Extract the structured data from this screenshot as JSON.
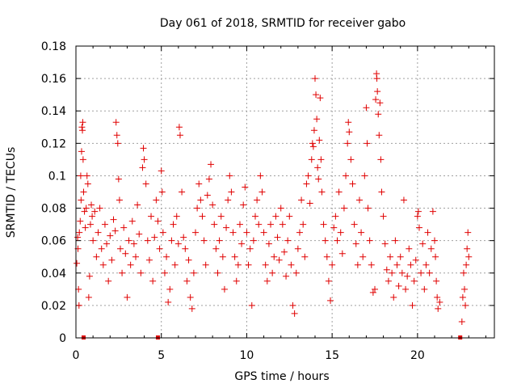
{
  "chart_data": {
    "type": "scatter",
    "title": "Day 061 of 2018, SRMTID for receiver gabo",
    "xlabel": "GPS time / hours",
    "ylabel": "SRMTID / TECUs",
    "xlim": [
      0,
      24.5
    ],
    "ylim": [
      0,
      0.18
    ],
    "xticks": [
      0,
      5,
      10,
      15,
      20
    ],
    "xtick_labels": [
      "0",
      "5",
      "10",
      "15",
      "20"
    ],
    "yticks": [
      0,
      0.02,
      0.04,
      0.06,
      0.08,
      0.1,
      0.12,
      0.14,
      0.16,
      0.18
    ],
    "ytick_labels": [
      "0",
      "0.02",
      "0.04",
      "0.06",
      "0.08",
      "0.1",
      "0.12",
      "0.14",
      "0.16",
      "0.18"
    ],
    "grid": true,
    "marker": "plus",
    "color": "#e00000",
    "series": [
      {
        "name": "SRMTID",
        "points": [
          [
            0.05,
            0.046
          ],
          [
            0.1,
            0.062
          ],
          [
            0.12,
            0.055
          ],
          [
            0.15,
            0.03
          ],
          [
            0.18,
            0.02
          ],
          [
            0.2,
            0.065
          ],
          [
            0.25,
            0.072
          ],
          [
            0.28,
            0.1
          ],
          [
            0.3,
            0.085
          ],
          [
            0.33,
            0.115
          ],
          [
            0.35,
            0.13
          ],
          [
            0.38,
            0.128
          ],
          [
            0.4,
            0.133
          ],
          [
            0.42,
            0.11
          ],
          [
            0.45,
            0.09
          ],
          [
            0.5,
            0.078
          ],
          [
            0.55,
            0.068
          ],
          [
            0.6,
            0.08
          ],
          [
            0.65,
            0.1
          ],
          [
            0.7,
            0.095
          ],
          [
            0.75,
            0.025
          ],
          [
            0.8,
            0.038
          ],
          [
            0.85,
            0.07
          ],
          [
            0.9,
            0.082
          ],
          [
            0.95,
            0.075
          ],
          [
            1.0,
            0.06
          ],
          [
            1.1,
            0.078
          ],
          [
            1.2,
            0.05
          ],
          [
            1.3,
            0.065
          ],
          [
            1.4,
            0.08
          ],
          [
            1.5,
            0.055
          ],
          [
            1.6,
            0.045
          ],
          [
            1.7,
            0.07
          ],
          [
            1.8,
            0.058
          ],
          [
            1.9,
            0.035
          ],
          [
            2.0,
            0.063
          ],
          [
            2.1,
            0.048
          ],
          [
            2.2,
            0.073
          ],
          [
            2.3,
            0.066
          ],
          [
            2.35,
            0.133
          ],
          [
            2.4,
            0.125
          ],
          [
            2.45,
            0.12
          ],
          [
            2.5,
            0.098
          ],
          [
            2.55,
            0.085
          ],
          [
            2.6,
            0.055
          ],
          [
            2.7,
            0.04
          ],
          [
            2.8,
            0.068
          ],
          [
            2.9,
            0.052
          ],
          [
            3.0,
            0.025
          ],
          [
            3.1,
            0.06
          ],
          [
            3.2,
            0.045
          ],
          [
            3.3,
            0.072
          ],
          [
            3.4,
            0.058
          ],
          [
            3.5,
            0.05
          ],
          [
            3.6,
            0.082
          ],
          [
            3.7,
            0.064
          ],
          [
            3.8,
            0.04
          ],
          [
            3.9,
            0.105
          ],
          [
            3.95,
            0.117
          ],
          [
            4.0,
            0.11
          ],
          [
            4.1,
            0.095
          ],
          [
            4.2,
            0.06
          ],
          [
            4.3,
            0.048
          ],
          [
            4.4,
            0.075
          ],
          [
            4.5,
            0.035
          ],
          [
            4.6,
            0.062
          ],
          [
            4.7,
            0.085
          ],
          [
            4.8,
            0.072
          ],
          [
            4.9,
            0.055
          ],
          [
            5.0,
            0.103
          ],
          [
            5.05,
            0.09
          ],
          [
            5.1,
            0.065
          ],
          [
            5.2,
            0.04
          ],
          [
            5.3,
            0.05
          ],
          [
            5.4,
            0.022
          ],
          [
            5.5,
            0.03
          ],
          [
            5.6,
            0.06
          ],
          [
            5.7,
            0.07
          ],
          [
            5.8,
            0.045
          ],
          [
            5.9,
            0.075
          ],
          [
            6.0,
            0.058
          ],
          [
            6.05,
            0.13
          ],
          [
            6.1,
            0.125
          ],
          [
            6.2,
            0.09
          ],
          [
            6.3,
            0.062
          ],
          [
            6.4,
            0.055
          ],
          [
            6.5,
            0.035
          ],
          [
            6.6,
            0.048
          ],
          [
            6.7,
            0.025
          ],
          [
            6.8,
            0.018
          ],
          [
            6.9,
            0.04
          ],
          [
            7.0,
            0.065
          ],
          [
            7.1,
            0.08
          ],
          [
            7.2,
            0.095
          ],
          [
            7.3,
            0.085
          ],
          [
            7.4,
            0.075
          ],
          [
            7.5,
            0.06
          ],
          [
            7.6,
            0.045
          ],
          [
            7.7,
            0.088
          ],
          [
            7.8,
            0.098
          ],
          [
            7.9,
            0.107
          ],
          [
            8.0,
            0.082
          ],
          [
            8.1,
            0.07
          ],
          [
            8.2,
            0.055
          ],
          [
            8.3,
            0.04
          ],
          [
            8.4,
            0.06
          ],
          [
            8.5,
            0.075
          ],
          [
            8.6,
            0.05
          ],
          [
            8.7,
            0.03
          ],
          [
            8.8,
            0.068
          ],
          [
            8.9,
            0.085
          ],
          [
            9.0,
            0.1
          ],
          [
            9.1,
            0.09
          ],
          [
            9.2,
            0.065
          ],
          [
            9.3,
            0.05
          ],
          [
            9.4,
            0.035
          ],
          [
            9.5,
            0.045
          ],
          [
            9.6,
            0.07
          ],
          [
            9.7,
            0.058
          ],
          [
            9.8,
            0.082
          ],
          [
            9.9,
            0.093
          ],
          [
            10.0,
            0.065
          ],
          [
            10.1,
            0.045
          ],
          [
            10.2,
            0.055
          ],
          [
            10.3,
            0.02
          ],
          [
            10.4,
            0.06
          ],
          [
            10.5,
            0.075
          ],
          [
            10.6,
            0.085
          ],
          [
            10.7,
            0.07
          ],
          [
            10.8,
            0.1
          ],
          [
            10.9,
            0.09
          ],
          [
            11.0,
            0.065
          ],
          [
            11.1,
            0.045
          ],
          [
            11.2,
            0.035
          ],
          [
            11.3,
            0.058
          ],
          [
            11.4,
            0.07
          ],
          [
            11.5,
            0.04
          ],
          [
            11.6,
            0.05
          ],
          [
            11.7,
            0.075
          ],
          [
            11.8,
            0.062
          ],
          [
            11.9,
            0.048
          ],
          [
            12.0,
            0.08
          ],
          [
            12.1,
            0.07
          ],
          [
            12.2,
            0.053
          ],
          [
            12.3,
            0.038
          ],
          [
            12.4,
            0.06
          ],
          [
            12.5,
            0.075
          ],
          [
            12.6,
            0.045
          ],
          [
            12.7,
            0.02
          ],
          [
            12.8,
            0.015
          ],
          [
            12.9,
            0.04
          ],
          [
            13.0,
            0.055
          ],
          [
            13.1,
            0.065
          ],
          [
            13.2,
            0.085
          ],
          [
            13.3,
            0.07
          ],
          [
            13.4,
            0.05
          ],
          [
            13.5,
            0.095
          ],
          [
            13.6,
            0.1
          ],
          [
            13.7,
            0.083
          ],
          [
            13.8,
            0.11
          ],
          [
            13.85,
            0.12
          ],
          [
            13.9,
            0.118
          ],
          [
            13.95,
            0.128
          ],
          [
            14.0,
            0.16
          ],
          [
            14.05,
            0.15
          ],
          [
            14.1,
            0.135
          ],
          [
            14.15,
            0.105
          ],
          [
            14.2,
            0.098
          ],
          [
            14.25,
            0.122
          ],
          [
            14.3,
            0.148
          ],
          [
            14.35,
            0.11
          ],
          [
            14.4,
            0.09
          ],
          [
            14.5,
            0.07
          ],
          [
            14.6,
            0.06
          ],
          [
            14.7,
            0.05
          ],
          [
            14.8,
            0.035
          ],
          [
            14.9,
            0.023
          ],
          [
            15.0,
            0.045
          ],
          [
            15.1,
            0.068
          ],
          [
            15.2,
            0.075
          ],
          [
            15.3,
            0.06
          ],
          [
            15.4,
            0.09
          ],
          [
            15.5,
            0.065
          ],
          [
            15.6,
            0.052
          ],
          [
            15.7,
            0.08
          ],
          [
            15.8,
            0.1
          ],
          [
            15.9,
            0.12
          ],
          [
            15.95,
            0.133
          ],
          [
            16.0,
            0.127
          ],
          [
            16.1,
            0.11
          ],
          [
            16.2,
            0.095
          ],
          [
            16.3,
            0.07
          ],
          [
            16.4,
            0.058
          ],
          [
            16.5,
            0.045
          ],
          [
            16.6,
            0.085
          ],
          [
            16.7,
            0.065
          ],
          [
            16.8,
            0.05
          ],
          [
            16.9,
            0.1
          ],
          [
            17.0,
            0.142
          ],
          [
            17.05,
            0.12
          ],
          [
            17.1,
            0.08
          ],
          [
            17.2,
            0.06
          ],
          [
            17.3,
            0.045
          ],
          [
            17.4,
            0.028
          ],
          [
            17.5,
            0.03
          ],
          [
            17.55,
            0.147
          ],
          [
            17.6,
            0.163
          ],
          [
            17.62,
            0.16
          ],
          [
            17.65,
            0.152
          ],
          [
            17.7,
            0.138
          ],
          [
            17.75,
            0.125
          ],
          [
            17.8,
            0.145
          ],
          [
            17.85,
            0.11
          ],
          [
            17.9,
            0.09
          ],
          [
            18.0,
            0.075
          ],
          [
            18.1,
            0.058
          ],
          [
            18.2,
            0.042
          ],
          [
            18.3,
            0.035
          ],
          [
            18.4,
            0.05
          ],
          [
            18.5,
            0.04
          ],
          [
            18.6,
            0.025
          ],
          [
            18.7,
            0.06
          ],
          [
            18.8,
            0.045
          ],
          [
            18.9,
            0.032
          ],
          [
            19.0,
            0.05
          ],
          [
            19.1,
            0.04
          ],
          [
            19.2,
            0.085
          ],
          [
            19.3,
            0.03
          ],
          [
            19.4,
            0.038
          ],
          [
            19.5,
            0.055
          ],
          [
            19.6,
            0.045
          ],
          [
            19.7,
            0.02
          ],
          [
            19.8,
            0.035
          ],
          [
            19.9,
            0.048
          ],
          [
            20.0,
            0.075
          ],
          [
            20.05,
            0.078
          ],
          [
            20.1,
            0.068
          ],
          [
            20.2,
            0.04
          ],
          [
            20.3,
            0.058
          ],
          [
            20.4,
            0.03
          ],
          [
            20.5,
            0.045
          ],
          [
            20.6,
            0.065
          ],
          [
            20.7,
            0.04
          ],
          [
            20.8,
            0.055
          ],
          [
            20.9,
            0.078
          ],
          [
            21.0,
            0.06
          ],
          [
            21.05,
            0.05
          ],
          [
            21.1,
            0.035
          ],
          [
            21.15,
            0.025
          ],
          [
            21.2,
            0.018
          ],
          [
            21.3,
            0.022
          ],
          [
            22.6,
            0.01
          ],
          [
            22.65,
            0.025
          ],
          [
            22.7,
            0.04
          ],
          [
            22.75,
            0.03
          ],
          [
            22.8,
            0.02
          ],
          [
            22.85,
            0.045
          ],
          [
            22.9,
            0.055
          ],
          [
            22.95,
            0.065
          ],
          [
            23.0,
            0.05
          ]
        ]
      }
    ],
    "axis_markers_x": [
      0.45,
      4.8,
      22.5
    ]
  }
}
